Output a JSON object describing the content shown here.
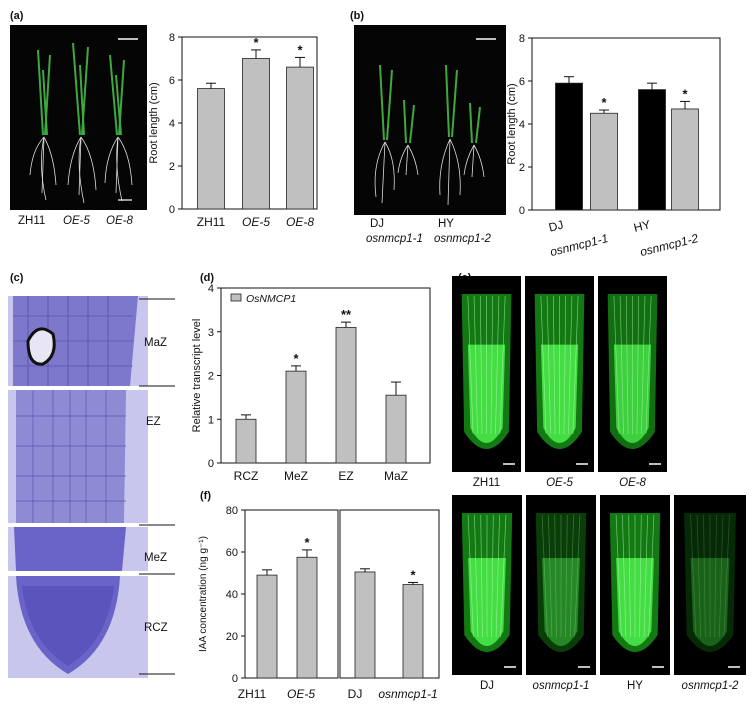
{
  "panels": {
    "a": {
      "label": "(a)",
      "captions": [
        "ZH11",
        "OE-5",
        "OE-8"
      ]
    },
    "b": {
      "label": "(b)",
      "captions": [
        "DJ",
        "osnmcp1-1",
        "HY",
        "osnmcp1-2"
      ]
    },
    "c": {
      "label": "(c)",
      "zones": [
        "MaZ",
        "EZ",
        "MeZ",
        "RCZ"
      ]
    },
    "d": {
      "label": "(d)"
    },
    "e": {
      "label": "(e)",
      "top_captions": [
        "ZH11",
        "OE-5",
        "OE-8"
      ],
      "bottom_captions": [
        "DJ",
        "osnmcp1-1",
        "HY",
        "osnmcp1-2"
      ]
    },
    "f": {
      "label": "(f)"
    }
  },
  "colors": {
    "grey_bar": "#c0c0c0",
    "black_bar": "#000000",
    "fluorescence": "#22dd22",
    "stain": "#6a63c8",
    "stain_bg": "#c9c6ee"
  },
  "chart_data": [
    {
      "id": "a",
      "type": "bar",
      "categories": [
        "ZH11",
        "OE-5",
        "OE-8"
      ],
      "values": [
        5.6,
        7.0,
        6.6
      ],
      "errors": [
        0.25,
        0.4,
        0.45
      ],
      "significance": [
        "",
        "*",
        "*"
      ],
      "colors": [
        "#c0c0c0",
        "#c0c0c0",
        "#c0c0c0"
      ],
      "italic": [
        false,
        true,
        true
      ],
      "ylabel": "Root length (cm)",
      "ylim": [
        0,
        8
      ],
      "yticks": [
        0,
        2,
        4,
        6,
        8
      ]
    },
    {
      "id": "b",
      "type": "bar",
      "categories": [
        "DJ",
        "osnmcp1-1",
        "HY",
        "osnmcp1-2"
      ],
      "values": [
        5.9,
        4.5,
        5.6,
        4.7
      ],
      "errors": [
        0.3,
        0.15,
        0.3,
        0.35
      ],
      "significance": [
        "",
        "*",
        "",
        "*"
      ],
      "colors": [
        "#000000",
        "#c0c0c0",
        "#000000",
        "#c0c0c0"
      ],
      "italic": [
        false,
        true,
        false,
        true
      ],
      "ylabel": "Root length (cm)",
      "ylim": [
        0,
        8
      ],
      "yticks": [
        0,
        2,
        4,
        6,
        8
      ]
    },
    {
      "id": "d",
      "type": "bar",
      "categories": [
        "RCZ",
        "MeZ",
        "EZ",
        "MaZ"
      ],
      "values": [
        1.0,
        2.1,
        3.1,
        1.55
      ],
      "errors": [
        0.1,
        0.12,
        0.12,
        0.3
      ],
      "significance": [
        "",
        "*",
        "**",
        ""
      ],
      "colors": [
        "#c0c0c0",
        "#c0c0c0",
        "#c0c0c0",
        "#c0c0c0"
      ],
      "italic": [
        false,
        false,
        false,
        false
      ],
      "ylabel": "Relative transcript level",
      "legend": "OsNMCP1",
      "ylim": [
        0,
        4
      ],
      "yticks": [
        0,
        1,
        2,
        3,
        4
      ]
    },
    {
      "id": "f",
      "type": "bar",
      "categories": [
        "ZH11",
        "OE-5",
        "DJ",
        "osnmcp1-1"
      ],
      "values": [
        49,
        57.5,
        50.5,
        44.5
      ],
      "errors": [
        2.5,
        3.5,
        1.5,
        1.0
      ],
      "significance": [
        "",
        "*",
        "",
        "*"
      ],
      "colors": [
        "#c0c0c0",
        "#c0c0c0",
        "#c0c0c0",
        "#c0c0c0"
      ],
      "italic": [
        false,
        true,
        false,
        true
      ],
      "ylabel": "IAA concentration (ng g⁻¹)",
      "ylim": [
        0,
        80
      ],
      "yticks": [
        0,
        20,
        40,
        60,
        80
      ]
    }
  ]
}
